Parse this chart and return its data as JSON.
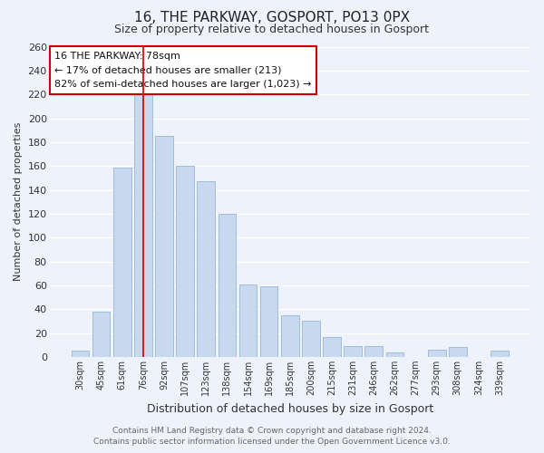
{
  "title": "16, THE PARKWAY, GOSPORT, PO13 0PX",
  "subtitle": "Size of property relative to detached houses in Gosport",
  "xlabel": "Distribution of detached houses by size in Gosport",
  "ylabel": "Number of detached properties",
  "categories": [
    "30sqm",
    "45sqm",
    "61sqm",
    "76sqm",
    "92sqm",
    "107sqm",
    "123sqm",
    "138sqm",
    "154sqm",
    "169sqm",
    "185sqm",
    "200sqm",
    "215sqm",
    "231sqm",
    "246sqm",
    "262sqm",
    "277sqm",
    "293sqm",
    "308sqm",
    "324sqm",
    "339sqm"
  ],
  "values": [
    5,
    38,
    159,
    220,
    185,
    160,
    147,
    120,
    61,
    59,
    35,
    30,
    17,
    9,
    9,
    4,
    0,
    6,
    8,
    0,
    5
  ],
  "bar_color": "#c8d8ee",
  "bar_edge_color": "#a0bcd8",
  "highlight_bar_index": 3,
  "highlight_line_color": "#cc0000",
  "ylim": [
    0,
    260
  ],
  "yticks": [
    0,
    20,
    40,
    60,
    80,
    100,
    120,
    140,
    160,
    180,
    200,
    220,
    240,
    260
  ],
  "annotation_title": "16 THE PARKWAY: 78sqm",
  "annotation_line1": "← 17% of detached houses are smaller (213)",
  "annotation_line2": "82% of semi-detached houses are larger (1,023) →",
  "annotation_box_color": "#ffffff",
  "annotation_box_edge": "#cc0000",
  "footer_line1": "Contains HM Land Registry data © Crown copyright and database right 2024.",
  "footer_line2": "Contains public sector information licensed under the Open Government Licence v3.0.",
  "background_color": "#eef2fa",
  "grid_color": "#ffffff",
  "title_fontsize": 11,
  "subtitle_fontsize": 9,
  "ylabel_fontsize": 8,
  "xlabel_fontsize": 9
}
